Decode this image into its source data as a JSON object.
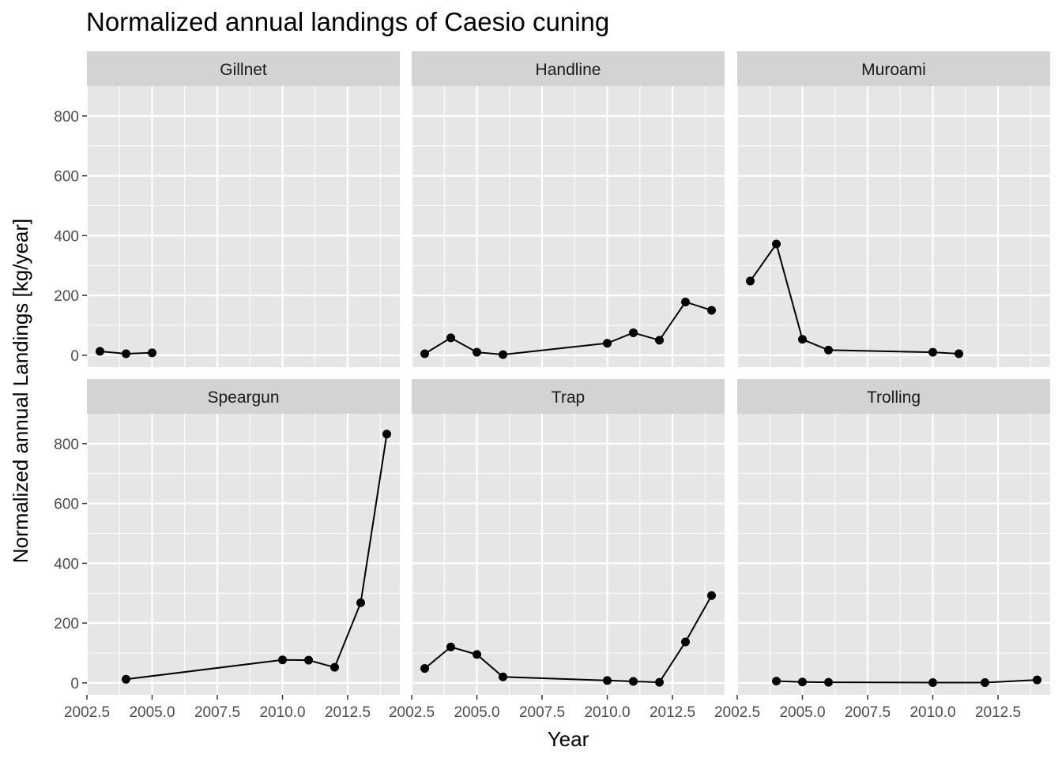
{
  "chart_data": {
    "type": "line",
    "title": "Normalized annual landings of Caesio cuning",
    "xlabel": "Year",
    "ylabel": "Normalized annual Landings [kg/year]",
    "xlim": [
      2002.5,
      2014.5
    ],
    "ylim": [
      -40,
      900
    ],
    "x_ticks": [
      2002.5,
      2005.0,
      2007.5,
      2010.0,
      2012.5
    ],
    "x_tick_labels": [
      "2002.5",
      "2005.0",
      "2007.5",
      "2010.0",
      "2012.5"
    ],
    "y_ticks": [
      0,
      200,
      400,
      600,
      800
    ],
    "y_tick_labels": [
      "0",
      "200",
      "400",
      "600",
      "800"
    ],
    "layout": "facet grid 2 rows x 3 columns",
    "grid": true,
    "colors": {
      "panel_background": "#e6e6e6",
      "grid": "#ffffff",
      "strip_background": "#d3d3d3",
      "series": "#000000"
    },
    "panels": [
      {
        "name": "Gillnet",
        "x": [
          2003,
          2004,
          2005
        ],
        "y": [
          13,
          5,
          8
        ]
      },
      {
        "name": "Handline",
        "x": [
          2003,
          2004,
          2005,
          2006,
          2010,
          2011,
          2012,
          2013,
          2014
        ],
        "y": [
          5,
          58,
          10,
          2,
          40,
          75,
          50,
          178,
          150
        ]
      },
      {
        "name": "Muroami",
        "x": [
          2003,
          2004,
          2005,
          2006,
          2010,
          2011
        ],
        "y": [
          248,
          372,
          53,
          17,
          10,
          5
        ]
      },
      {
        "name": "Speargun",
        "x": [
          2004,
          2010,
          2011,
          2012,
          2013,
          2014
        ],
        "y": [
          12,
          77,
          76,
          52,
          268,
          832
        ]
      },
      {
        "name": "Trap",
        "x": [
          2003,
          2004,
          2005,
          2006,
          2010,
          2011,
          2012,
          2013,
          2014
        ],
        "y": [
          48,
          120,
          95,
          20,
          8,
          5,
          2,
          137,
          292
        ]
      },
      {
        "name": "Trolling",
        "x": [
          2004,
          2005,
          2006,
          2010,
          2012,
          2014
        ],
        "y": [
          6,
          3,
          2,
          1,
          1,
          10
        ]
      }
    ]
  }
}
